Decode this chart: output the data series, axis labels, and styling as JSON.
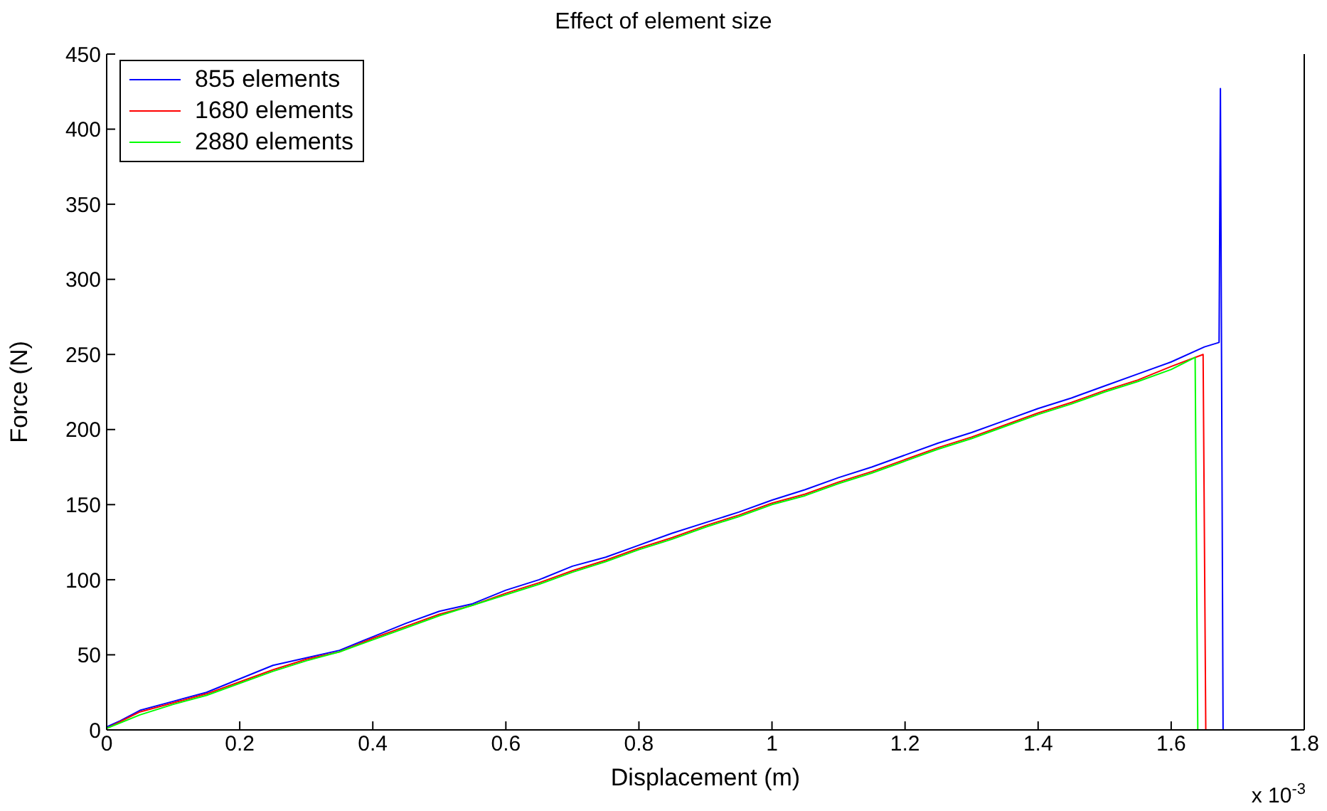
{
  "chart_data": {
    "type": "line",
    "title": "Effect of element size",
    "xlabel": "Displacement (m)",
    "ylabel": "Force (N)",
    "annotations": [
      "x 10$^{-3}$"
    ],
    "xlim": [
      0,
      1.8
    ],
    "xticks": [
      0,
      0.2,
      0.4,
      0.6,
      0.8,
      1,
      1.2,
      1.4,
      1.6,
      1.8
    ],
    "ylim": [
      0,
      450
    ],
    "yticks": [
      0,
      50,
      100,
      150,
      200,
      250,
      300,
      350,
      400,
      450
    ],
    "grid": false,
    "legend": "top left",
    "marker": "none",
    "line_style": "solid",
    "series": [
      {
        "name": "855 elements",
        "color": "#0000ff",
        "x": [
          0,
          0.02,
          0.05,
          0.1,
          0.15,
          0.2,
          0.25,
          0.3,
          0.35,
          0.4,
          0.45,
          0.5,
          0.55,
          0.6,
          0.65,
          0.7,
          0.75,
          0.8,
          0.85,
          0.9,
          0.95,
          1.0,
          1.05,
          1.1,
          1.15,
          1.2,
          1.25,
          1.3,
          1.35,
          1.4,
          1.45,
          1.5,
          1.55,
          1.6,
          1.65,
          1.672,
          1.674,
          1.678,
          1.8
        ],
        "values": [
          2,
          6,
          13,
          19,
          25,
          34,
          43,
          48,
          53,
          62,
          71,
          79,
          84,
          93,
          100,
          109,
          115,
          123,
          131,
          138,
          145,
          153,
          160,
          168,
          175,
          183,
          191,
          198,
          206,
          214,
          221,
          229,
          237,
          245,
          255,
          258,
          427,
          0,
          0
        ]
      },
      {
        "name": "1680 elements",
        "color": "#ff0000",
        "x": [
          0,
          0.05,
          0.1,
          0.15,
          0.2,
          0.25,
          0.3,
          0.35,
          0.4,
          0.45,
          0.5,
          0.55,
          0.6,
          0.65,
          0.7,
          0.75,
          0.8,
          0.85,
          0.9,
          0.95,
          1.0,
          1.05,
          1.1,
          1.15,
          1.2,
          1.25,
          1.3,
          1.35,
          1.4,
          1.45,
          1.5,
          1.55,
          1.6,
          1.648,
          1.652,
          1.8
        ],
        "values": [
          1,
          12,
          18,
          24,
          32,
          40,
          47,
          52,
          61,
          69,
          77,
          83,
          91,
          98,
          106,
          113,
          121,
          128,
          136,
          143,
          151,
          157,
          165,
          172,
          180,
          188,
          195,
          203,
          211,
          218,
          226,
          233,
          242,
          250,
          0,
          0
        ]
      },
      {
        "name": "2880 elements",
        "color": "#00ff00",
        "x": [
          0,
          0.05,
          0.1,
          0.15,
          0.2,
          0.25,
          0.3,
          0.35,
          0.4,
          0.45,
          0.5,
          0.55,
          0.6,
          0.65,
          0.7,
          0.75,
          0.8,
          0.85,
          0.9,
          0.95,
          1.0,
          1.05,
          1.1,
          1.15,
          1.2,
          1.25,
          1.3,
          1.35,
          1.4,
          1.45,
          1.5,
          1.55,
          1.6,
          1.636,
          1.64,
          1.8
        ],
        "values": [
          1,
          10,
          17,
          23,
          31,
          39,
          46,
          52,
          60,
          68,
          76,
          83,
          90,
          97,
          105,
          112,
          120,
          127,
          135,
          142,
          150,
          156,
          164,
          171,
          179,
          187,
          194,
          202,
          210,
          217,
          225,
          232,
          240,
          248,
          0,
          0
        ]
      }
    ]
  }
}
